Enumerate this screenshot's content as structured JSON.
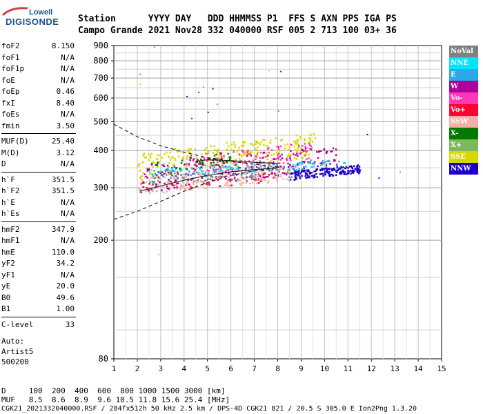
{
  "logo": {
    "line1": "Lowell",
    "line2": "DIGISONDE",
    "color": "#1f4f8f"
  },
  "header": {
    "row1": "Station      YYYY DAY   DDD HHMMSS P1  FFS S AXN PPS IGA PS",
    "row2": "Campo Grande 2021 Nov28 332 040000 RSF 005 2 713 100 03+ 36"
  },
  "params": [
    {
      "label": "foF2",
      "value": "8.150"
    },
    {
      "label": "foF1",
      "value": "N/A"
    },
    {
      "label": "foF1p",
      "value": "N/A"
    },
    {
      "label": "foE",
      "value": "N/A"
    },
    {
      "label": "foEp",
      "value": "0.46"
    },
    {
      "label": "fxI",
      "value": "8.40"
    },
    {
      "label": "foEs",
      "value": "N/A"
    },
    {
      "label": "fmin",
      "value": "3.50"
    },
    {
      "label": "MUF(D)",
      "value": "25.40"
    },
    {
      "label": "M(D)",
      "value": "3.12"
    },
    {
      "label": "D",
      "value": "N/A"
    },
    {
      "label": "h`F",
      "value": "351.5"
    },
    {
      "label": "h`F2",
      "value": "351.5"
    },
    {
      "label": "h`E",
      "value": "N/A"
    },
    {
      "label": "h`Es",
      "value": "N/A"
    },
    {
      "label": "hmF2",
      "value": "347.9"
    },
    {
      "label": "hmF1",
      "value": "N/A"
    },
    {
      "label": "hmE",
      "value": "110.0"
    },
    {
      "label": "yF2",
      "value": "34.2"
    },
    {
      "label": "yF1",
      "value": "N/A"
    },
    {
      "label": "yE",
      "value": "20.0"
    },
    {
      "label": "B0",
      "value": "49.6"
    },
    {
      "label": "B1",
      "value": "1.00"
    },
    {
      "label": "C-level",
      "value": "33"
    }
  ],
  "auto": {
    "line1": "Auto:",
    "line2": "Artist5",
    "line3": "500200"
  },
  "legend": [
    {
      "label": "NoVal",
      "color": "#808080"
    },
    {
      "label": "NNE",
      "color": "#00e5ff"
    },
    {
      "label": "E",
      "color": "#2aa8e8"
    },
    {
      "label": "W",
      "color": "#b0009c"
    },
    {
      "label": "Vo-",
      "color": "#ff38b8"
    },
    {
      "label": "Vo+",
      "color": "#ff0033"
    },
    {
      "label": "SSW",
      "color": "#f4b0a8"
    },
    {
      "label": "X-",
      "color": "#007a00"
    },
    {
      "label": "X+",
      "color": "#7aba5a"
    },
    {
      "label": "SSE",
      "color": "#d8d800"
    },
    {
      "label": "NNW",
      "color": "#1a00cc"
    }
  ],
  "footer": {
    "row1": "D     100  200  400  600  800 1000 1500 3000 [km]",
    "row2": "MUF   8.5  8.6  8.9  9.6 10.5 11.8 15.6 25.4 [MHz]",
    "row3": "CGK21_2021332040000.RSF / 284fx512h 50 kHz 2.5 km / DPS-4D CGK21 821 / 20.5 S 305.0 E Ion2Png 1.3.20"
  },
  "chart_data": {
    "type": "scatter",
    "title": "",
    "xlabel": "",
    "ylabel": "",
    "xlim": [
      1,
      15
    ],
    "ylim": [
      80,
      900
    ],
    "xticks": [
      1,
      2,
      3,
      4,
      5,
      6,
      7,
      8,
      9,
      10,
      11,
      12,
      13,
      14,
      15
    ],
    "yticks": [
      80,
      200,
      300,
      400,
      500,
      600,
      700,
      800,
      900
    ],
    "ylog": true,
    "grid": true,
    "clusters": [
      {
        "name": "SSW",
        "color": "#f4b0a8",
        "x": [
          2.0,
          8.6
        ],
        "y": [
          285,
          360
        ],
        "n": 260
      },
      {
        "name": "SSE",
        "color": "#d8d800",
        "x": [
          2.0,
          9.6
        ],
        "y": [
          320,
          460
        ],
        "n": 300
      },
      {
        "name": "W",
        "color": "#b0009c",
        "x": [
          2.1,
          10.5
        ],
        "y": [
          290,
          420
        ],
        "n": 220
      },
      {
        "name": "Vo-",
        "color": "#ff38b8",
        "x": [
          4.0,
          9.5
        ],
        "y": [
          330,
          430
        ],
        "n": 120
      },
      {
        "name": "E",
        "color": "#2aa8e8",
        "x": [
          2.5,
          10.8
        ],
        "y": [
          310,
          380
        ],
        "n": 100
      },
      {
        "name": "NNE",
        "color": "#00e5ff",
        "x": [
          2.5,
          11.0
        ],
        "y": [
          330,
          370
        ],
        "n": 60
      },
      {
        "name": "NNW",
        "color": "#1a00cc",
        "x": [
          8.5,
          11.5
        ],
        "y": [
          320,
          360
        ],
        "n": 160
      },
      {
        "name": "X-",
        "color": "#007a00",
        "x": [
          2.5,
          6.0
        ],
        "y": [
          330,
          400
        ],
        "n": 40
      },
      {
        "name": "Vo+",
        "color": "#ff0033",
        "x": [
          2.0,
          8.0
        ],
        "y": [
          290,
          340
        ],
        "n": 40
      },
      {
        "name": "NoVal",
        "color": "#808080",
        "x": [
          2.5,
          9.0
        ],
        "y": [
          300,
          360
        ],
        "n": 50
      }
    ],
    "curves": [
      {
        "name": "profile-dashed",
        "style": "dashed",
        "points": [
          [
            1,
            235
          ],
          [
            2,
            250
          ],
          [
            3,
            270
          ],
          [
            4,
            292
          ],
          [
            5,
            312
          ],
          [
            6,
            330
          ],
          [
            7,
            342
          ],
          [
            8,
            350
          ]
        ]
      },
      {
        "name": "profile-upper",
        "style": "dashed",
        "points": [
          [
            1,
            490
          ],
          [
            2,
            445
          ],
          [
            3,
            415
          ],
          [
            4,
            395
          ],
          [
            5,
            378
          ],
          [
            6,
            368
          ],
          [
            7,
            360
          ],
          [
            8,
            352
          ]
        ]
      },
      {
        "name": "trace-virtual",
        "style": "solid",
        "points": [
          [
            2.1,
            292
          ],
          [
            3,
            304
          ],
          [
            4,
            318
          ],
          [
            5,
            330
          ],
          [
            6,
            339
          ],
          [
            7,
            345
          ],
          [
            8,
            350
          ]
        ]
      },
      {
        "name": "trace-upper",
        "style": "solid",
        "points": [
          [
            4.5,
            368
          ],
          [
            5,
            372
          ],
          [
            6,
            370
          ],
          [
            7,
            365
          ],
          [
            8,
            362
          ]
        ]
      }
    ],
    "outliers": [
      {
        "x": 2.7,
        "y": 893,
        "color": "#2aa8e8"
      },
      {
        "x": 2.1,
        "y": 725,
        "color": "#ff38b8"
      },
      {
        "x": 2.1,
        "y": 670,
        "color": "#d8d800"
      },
      {
        "x": 7.6,
        "y": 745,
        "color": "#d8d800"
      },
      {
        "x": 8.1,
        "y": 740,
        "color": "#b0009c"
      },
      {
        "x": 4.8,
        "y": 655,
        "color": "#2aa8e8"
      },
      {
        "x": 5.2,
        "y": 648,
        "color": "#1a00cc"
      },
      {
        "x": 4.6,
        "y": 630,
        "color": "#b0009c"
      },
      {
        "x": 4.1,
        "y": 610,
        "color": "#1a00cc"
      },
      {
        "x": 5.4,
        "y": 575,
        "color": "#2aa8e8"
      },
      {
        "x": 8.9,
        "y": 570,
        "color": "#d8d800"
      },
      {
        "x": 4.3,
        "y": 515,
        "color": "#007a00"
      },
      {
        "x": 5.0,
        "y": 540,
        "color": "#1a00cc"
      },
      {
        "x": 8.0,
        "y": 545,
        "color": "#ff38b8"
      },
      {
        "x": 11.8,
        "y": 455,
        "color": "#1a00cc"
      },
      {
        "x": 12.3,
        "y": 325,
        "color": "#1a00cc"
      },
      {
        "x": 13.2,
        "y": 340,
        "color": "#2aa8e8"
      },
      {
        "x": 2.9,
        "y": 180,
        "color": "#d8d800"
      }
    ]
  }
}
